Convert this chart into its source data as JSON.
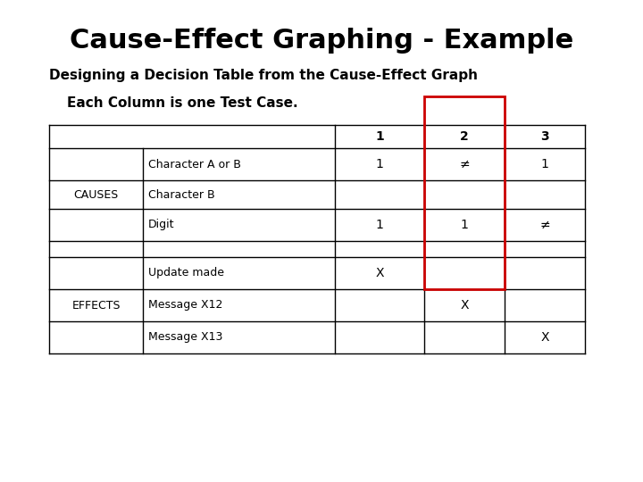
{
  "title": "Cause-Effect Graphing - Example",
  "subtitle": "Designing a Decision Table from the Cause-Effect Graph",
  "note": "Each Column is one Test Case.",
  "bg_color": "#ffffff",
  "title_fontsize": 22,
  "subtitle_fontsize": 11,
  "note_fontsize": 11,
  "row_group_causes": "CAUSES",
  "row_group_effects": "EFFECTS",
  "causes_rows": [
    [
      "Character A or B",
      "1",
      "≠",
      "1"
    ],
    [
      "Character B",
      "",
      "",
      ""
    ],
    [
      "Digit",
      "1",
      "1",
      "≠"
    ]
  ],
  "effects_rows": [
    [
      "Update made",
      "X",
      "",
      ""
    ],
    [
      "Message X12",
      "",
      "X",
      ""
    ],
    [
      "Message X13",
      "",
      "",
      "X"
    ]
  ]
}
